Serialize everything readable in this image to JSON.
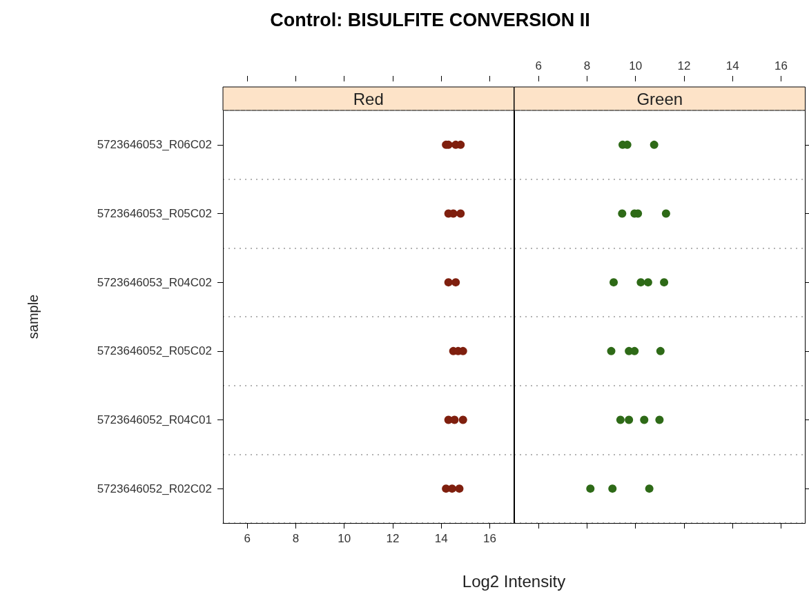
{
  "chart_data": [
    {
      "type": "scatter",
      "orientation": "horizontal",
      "title": "Control: BISULFITE CONVERSION II",
      "xlabel": "Log2 Intensity",
      "ylabel": "sample",
      "marker": "circle",
      "grid": "y",
      "categories": [
        "5723646053_R06C02",
        "5723646053_R05C02",
        "5723646053_R04C02",
        "5723646052_R05C02",
        "5723646052_R04C01",
        "5723646052_R02C02"
      ],
      "xlim": [
        5,
        17
      ],
      "xticks": [
        6,
        8,
        10,
        12,
        14,
        16
      ],
      "series": [
        {
          "name": "Red",
          "color": "#7f1f0e",
          "x": [
            "5723646053_R06C02",
            "5723646053_R06C02",
            "5723646053_R06C02",
            "5723646053_R06C02",
            "5723646053_R05C02",
            "5723646053_R05C02",
            "5723646053_R05C02",
            "5723646053_R04C02",
            "5723646053_R04C02",
            "5723646052_R05C02",
            "5723646052_R05C02",
            "5723646052_R05C02",
            "5723646052_R04C01",
            "5723646052_R04C01",
            "5723646052_R04C01",
            "5723646052_R02C02",
            "5723646052_R02C02",
            "5723646052_R02C02"
          ],
          "values": [
            14.2,
            14.3,
            14.6,
            14.8,
            14.3,
            14.5,
            14.8,
            14.3,
            14.6,
            14.5,
            14.7,
            14.9,
            14.3,
            14.55,
            14.9,
            14.2,
            14.45,
            14.75
          ]
        }
      ]
    },
    {
      "type": "scatter",
      "orientation": "horizontal",
      "marker": "circle",
      "grid": "y",
      "tick_labels": "x",
      "categories": [
        "5723646053_R06C02",
        "5723646053_R05C02",
        "5723646053_R04C02",
        "5723646052_R05C02",
        "5723646052_R04C01",
        "5723646052_R02C02"
      ],
      "x2lim": [
        5,
        17
      ],
      "x2ticks": [
        6,
        8,
        10,
        12,
        14,
        16
      ],
      "series": [
        {
          "name": "Green",
          "color": "#2e6a17",
          "axis": "x2",
          "x": [
            "5723646053_R06C02",
            "5723646053_R06C02",
            "5723646053_R06C02",
            "5723646053_R05C02",
            "5723646053_R05C02",
            "5723646053_R05C02",
            "5723646053_R05C02",
            "5723646053_R04C02",
            "5723646053_R04C02",
            "5723646053_R04C02",
            "5723646053_R04C02",
            "5723646052_R05C02",
            "5723646052_R05C02",
            "5723646052_R05C02",
            "5723646052_R05C02",
            "5723646052_R04C01",
            "5723646052_R04C01",
            "5723646052_R04C01",
            "5723646052_R04C01",
            "5723646052_R02C02",
            "5723646052_R02C02",
            "5723646052_R02C02"
          ],
          "values": [
            9.47,
            9.66,
            10.77,
            9.45,
            9.96,
            10.1,
            11.26,
            9.1,
            10.22,
            10.52,
            11.18,
            9.0,
            9.73,
            9.96,
            11.03,
            9.38,
            9.73,
            10.36,
            10.99,
            8.14,
            9.05,
            10.57
          ]
        }
      ]
    }
  ]
}
